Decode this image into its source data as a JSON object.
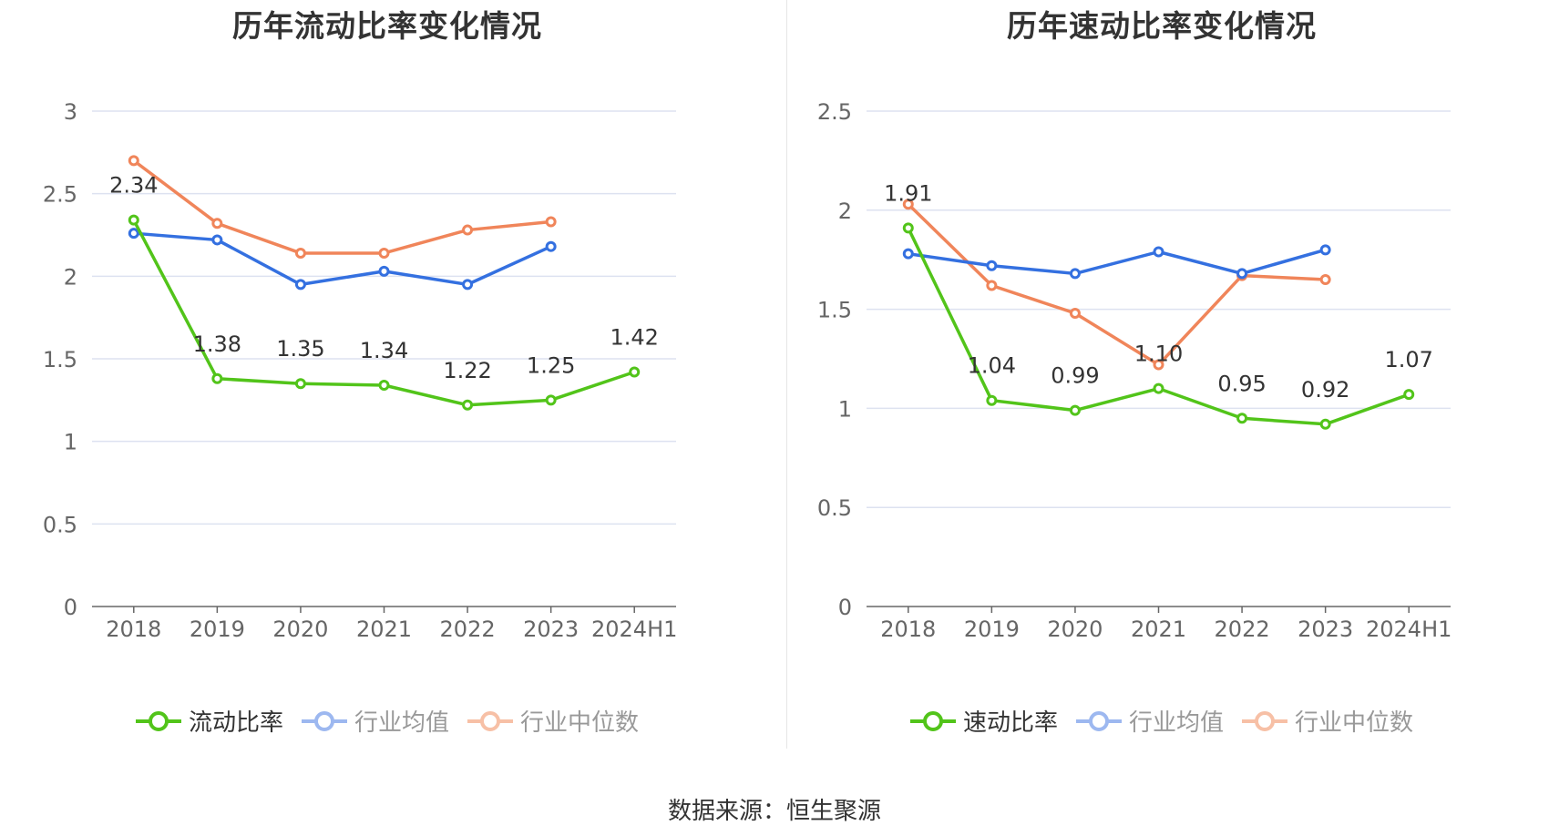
{
  "colors": {
    "company": "#52c41a",
    "industry_avg": "#3470e0",
    "industry_median": "#f0855a",
    "grid": "#dde2f0",
    "axis": "#666666",
    "label_text": "#333333",
    "legend_dim_avg": "#9db8f0",
    "legend_dim_median": "#f7c0a6"
  },
  "legend_labels": {
    "industry_avg": "行业均值",
    "industry_median": "行业中位数"
  },
  "chart_data": [
    {
      "type": "line",
      "title": "历年流动比率变化情况",
      "categories": [
        "2018",
        "2019",
        "2020",
        "2021",
        "2022",
        "2023",
        "2024H1"
      ],
      "ylim": [
        0,
        3
      ],
      "yticks": [
        "0",
        "0.5",
        "1",
        "1.5",
        "2",
        "2.5",
        "3"
      ],
      "grid": true,
      "legend_position": "bottom",
      "series": [
        {
          "name": "流动比率",
          "key": "company",
          "values": [
            2.34,
            1.38,
            1.35,
            1.34,
            1.22,
            1.25,
            1.42
          ],
          "data_labels": [
            "2.34",
            "1.38",
            "1.35",
            "1.34",
            "1.22",
            "1.25",
            "1.42"
          ]
        },
        {
          "name": "行业均值",
          "key": "industry_avg",
          "values": [
            2.26,
            2.22,
            1.95,
            2.03,
            1.95,
            2.18,
            null
          ]
        },
        {
          "name": "行业中位数",
          "key": "industry_median",
          "values": [
            2.7,
            2.32,
            2.14,
            2.14,
            2.28,
            2.33,
            null
          ]
        }
      ]
    },
    {
      "type": "line",
      "title": "历年速动比率变化情况",
      "categories": [
        "2018",
        "2019",
        "2020",
        "2021",
        "2022",
        "2023",
        "2024H1"
      ],
      "ylim": [
        0,
        2.5
      ],
      "yticks": [
        "0",
        "0.5",
        "1",
        "1.5",
        "2",
        "2.5"
      ],
      "grid": true,
      "legend_position": "bottom",
      "series": [
        {
          "name": "速动比率",
          "key": "company",
          "values": [
            1.91,
            1.04,
            0.99,
            1.1,
            0.95,
            0.92,
            1.07
          ],
          "data_labels": [
            "1.91",
            "1.04",
            "0.99",
            "1.10",
            "0.95",
            "0.92",
            "1.07"
          ]
        },
        {
          "name": "行业均值",
          "key": "industry_avg",
          "values": [
            1.78,
            1.72,
            1.68,
            1.79,
            1.68,
            1.8,
            null
          ]
        },
        {
          "name": "行业中位数",
          "key": "industry_median",
          "values": [
            2.03,
            1.62,
            1.48,
            1.22,
            1.67,
            1.65,
            null
          ]
        }
      ]
    }
  ],
  "source_text": "数据来源：恒生聚源"
}
